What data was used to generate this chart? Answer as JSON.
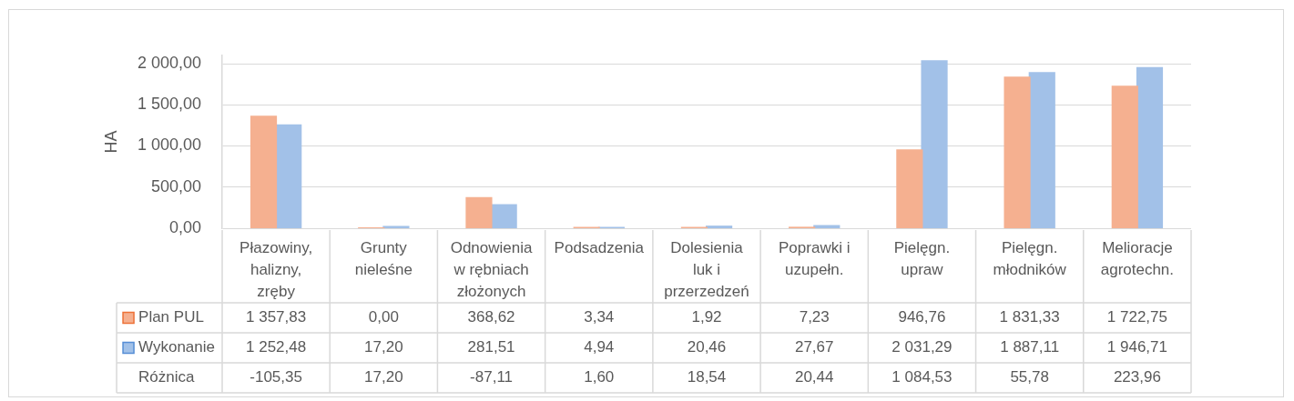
{
  "chart_data": {
    "type": "bar",
    "ylabel": "HA",
    "categories": [
      "Płazowiny, halizny, zręby",
      "Grunty nieleśne",
      "Odnowienia w rębniach złożonych",
      "Podsadzenia",
      "Dolesienia luk i przerzedzeń",
      "Poprawki i uzupełn.",
      "Pielęgn. upraw",
      "Pielęgn. młodników",
      "Melioracje agrotechn."
    ],
    "series": [
      {
        "name": "Plan PUL",
        "color": "#f5b090",
        "values": [
          1357.83,
          0,
          368.62,
          3.34,
          1.92,
          7.23,
          946.76,
          1831.33,
          1722.75
        ],
        "value_labels": [
          "1 357,83",
          "0,00",
          "368,62",
          "3,34",
          "1,92",
          "7,23",
          "946,76",
          "1 831,33",
          "1 722,75"
        ]
      },
      {
        "name": "Wykonanie",
        "color": "#a2c1e8",
        "values": [
          1252.48,
          17.2,
          281.51,
          4.94,
          20.46,
          27.67,
          2031.29,
          1887.11,
          1946.71
        ],
        "value_labels": [
          "1 252,48",
          "17,20",
          "281,51",
          "4,94",
          "20,46",
          "27,67",
          "2 031,29",
          "1 887,11",
          "1 946,71"
        ]
      }
    ],
    "ylim": [
      0,
      2100
    ],
    "yticks": [
      {
        "value": 0,
        "label": "0,00"
      },
      {
        "value": 500,
        "label": "500,00"
      },
      {
        "value": 1000,
        "label": "1 000,00"
      },
      {
        "value": 1500,
        "label": "1 500,00"
      },
      {
        "value": 2000,
        "label": "2 000,00"
      }
    ],
    "grid": "y",
    "legend": "bottom",
    "annotations": [
      "Różnica",
      "-105,35",
      "17,20",
      "-87,11",
      "1,60",
      "18,54",
      "20,44",
      "1 084,53",
      "55,78",
      "223,96"
    ]
  }
}
